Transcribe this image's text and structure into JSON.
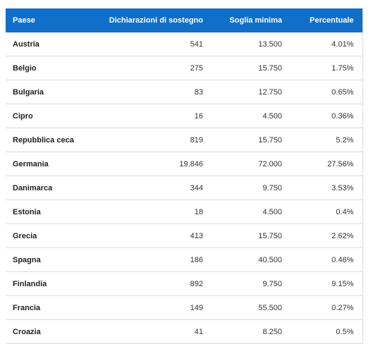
{
  "table": {
    "header": [
      "Paese",
      "Dichiarazioni di sostegno",
      "Soglia minima",
      "Percentuale"
    ],
    "rows": [
      [
        "Austria",
        "541",
        "13.500",
        "4.01%"
      ],
      [
        "Belgio",
        "275",
        "15.750",
        "1.75%"
      ],
      [
        "Bulgaria",
        "83",
        "12.750",
        "0.65%"
      ],
      [
        "Cipro",
        "16",
        "4.500",
        "0.36%"
      ],
      [
        "Repubblica ceca",
        "819",
        "15.750",
        "5.2%"
      ],
      [
        "Germania",
        "19.846",
        "72.000",
        "27.56%"
      ],
      [
        "Danimarca",
        "344",
        "9.750",
        "3.53%"
      ],
      [
        "Estonia",
        "18",
        "4.500",
        "0.4%"
      ],
      [
        "Grecia",
        "413",
        "15.750",
        "2.62%"
      ],
      [
        "Spagna",
        "186",
        "40.500",
        "0.46%"
      ],
      [
        "Finlandia",
        "892",
        "9.750",
        "9.15%"
      ],
      [
        "Francia",
        "149",
        "55.500",
        "0.27%"
      ],
      [
        "Croazia",
        "41",
        "8.250",
        "0.5%"
      ]
    ]
  }
}
